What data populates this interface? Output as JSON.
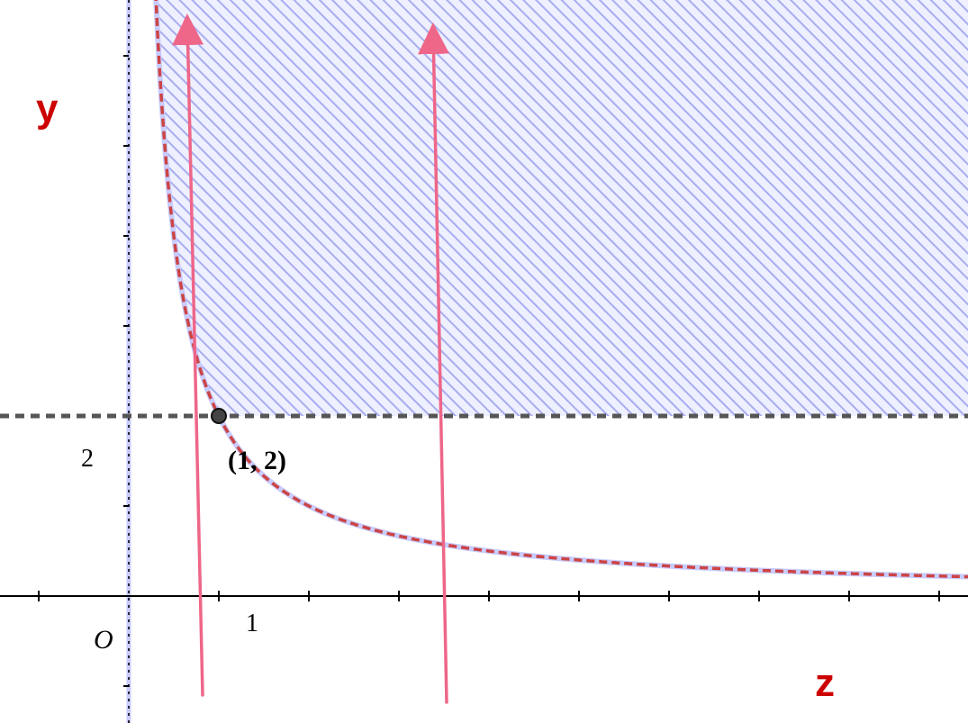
{
  "axes": {
    "x_name": "z",
    "y_name": "y",
    "origin_label": "O",
    "x_tick_label": "1",
    "y_tick_label": "2",
    "xlim": [
      -1.4,
      9.3
    ],
    "ylim": [
      -1.4,
      6.6
    ]
  },
  "curve": {
    "relation": "y = 2/z",
    "style": "dashed",
    "color": "#cc4444"
  },
  "boundary_line": {
    "relation": "y = 2",
    "style": "dashed",
    "color": "#555555"
  },
  "region": {
    "description_fill": "hatched",
    "color": "#8888ee"
  },
  "point": {
    "x": 1,
    "y": 2,
    "label": "(1, 2)"
  },
  "arrows": [
    {
      "from": [
        0.82,
        -1.1
      ],
      "to": [
        0.65,
        6.4
      ],
      "color": "#ee6688"
    },
    {
      "from": [
        3.53,
        -1.18
      ],
      "to": [
        3.38,
        6.3
      ],
      "color": "#ee6688"
    }
  ],
  "colors": {
    "axis_name": "#cc0000",
    "axis": "#000000",
    "y_axis_highlight": "#aaaaff"
  }
}
